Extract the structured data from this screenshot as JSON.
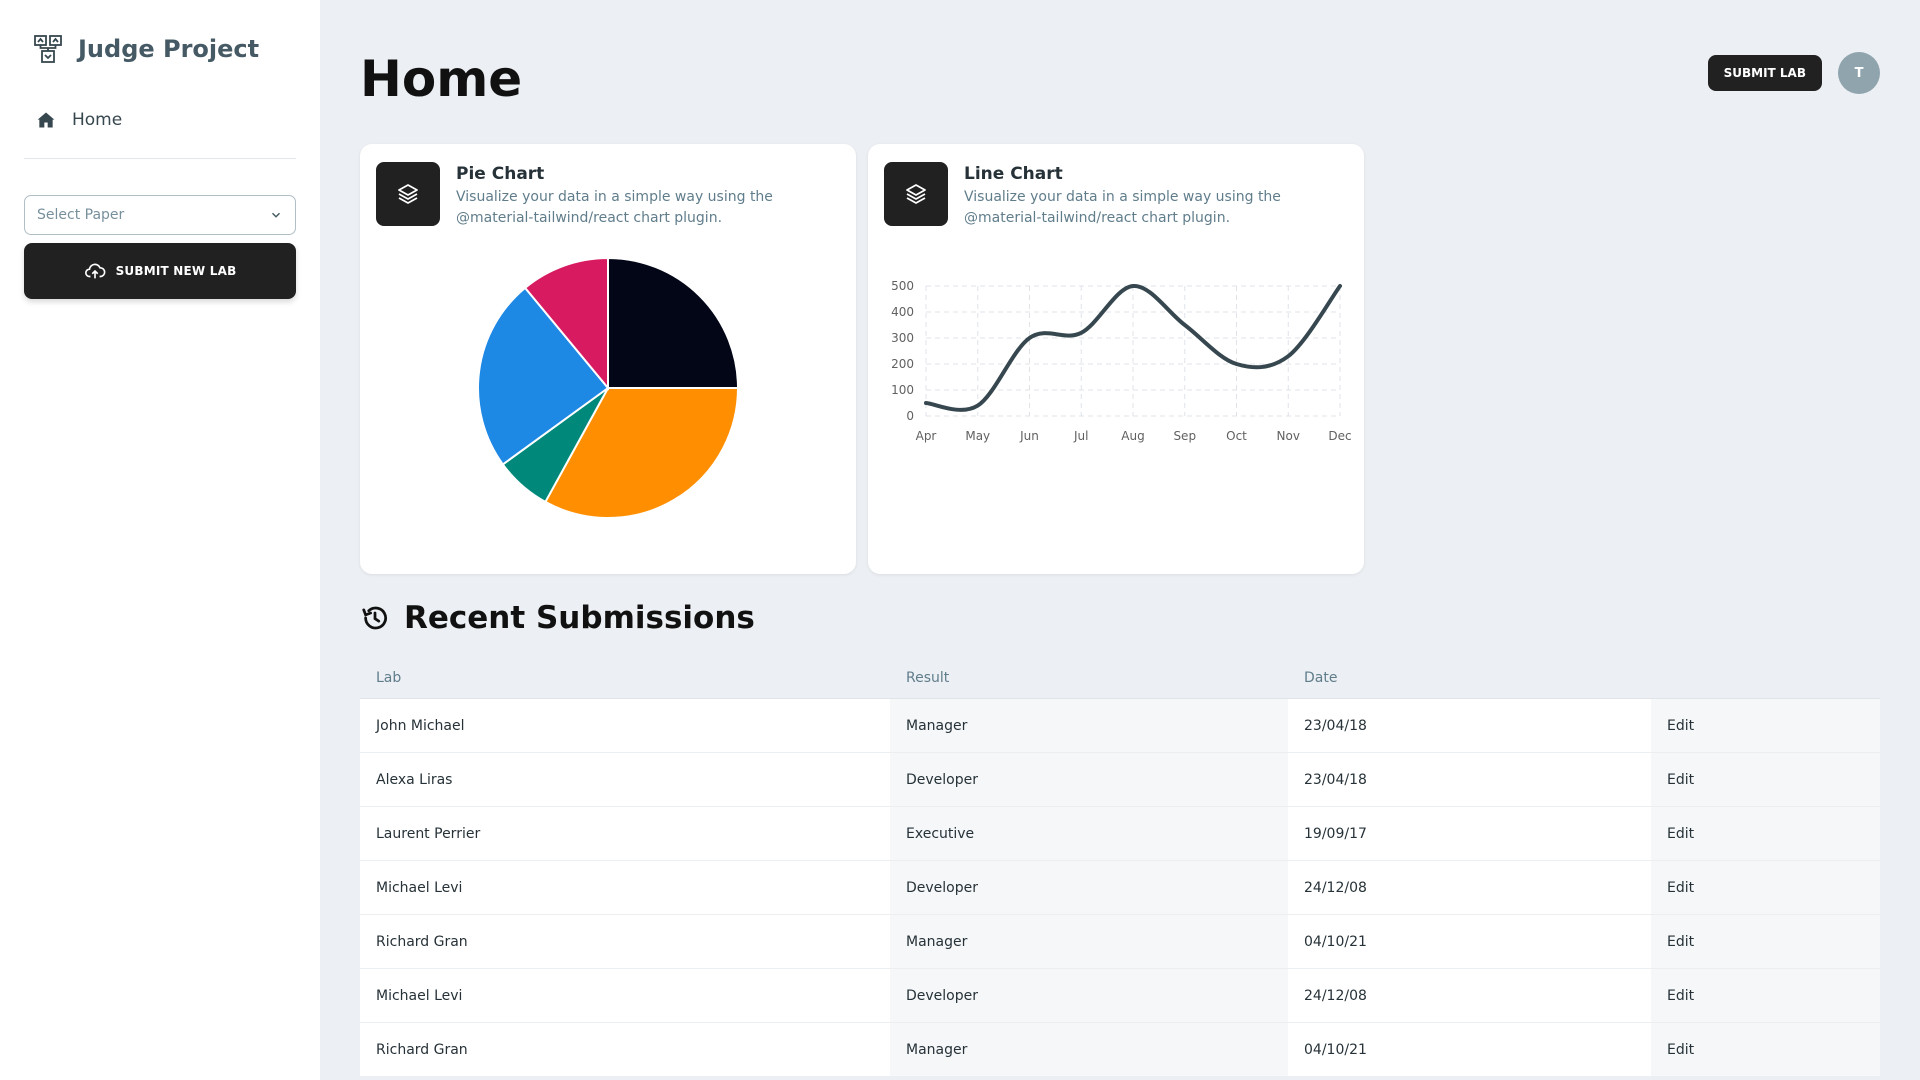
{
  "sidebar": {
    "brand_title": "Judge Project",
    "nav": [
      {
        "label": "Home",
        "icon": "home-icon"
      }
    ],
    "select_placeholder": "Select Paper",
    "submit_new_label": "SUBMIT NEW LAB"
  },
  "header": {
    "title": "Home",
    "submit_lab_label": "SUBMIT LAB",
    "avatar_initial": "T"
  },
  "cards": {
    "pie": {
      "title": "Pie Chart",
      "description": "Visualize your data in a simple way using the @material-tailwind/react chart plugin.",
      "icon": "layers-icon"
    },
    "line": {
      "title": "Line Chart",
      "description": "Visualize your data in a simple way using the @material-tailwind/react chart plugin.",
      "icon": "layers-icon"
    }
  },
  "chart_data": [
    {
      "type": "pie",
      "title": "",
      "values": [
        25,
        33,
        7,
        24,
        11
      ],
      "colors": [
        "#020617",
        "#ff8f00",
        "#00897b",
        "#1e88e5",
        "#d81b60"
      ]
    },
    {
      "type": "line",
      "title": "",
      "categories": [
        "Apr",
        "May",
        "Jun",
        "Jul",
        "Aug",
        "Sep",
        "Oct",
        "Nov",
        "Dec"
      ],
      "values": [
        50,
        40,
        300,
        320,
        500,
        350,
        200,
        230,
        500
      ],
      "y_ticks": [
        "0",
        "100",
        "200",
        "300",
        "400",
        "500"
      ],
      "ylim": [
        0,
        500
      ],
      "grid": true,
      "line_color": "#37474f"
    }
  ],
  "recent": {
    "title": "Recent Submissions",
    "icon": "history-icon",
    "columns": [
      "Lab",
      "Result",
      "Date",
      ""
    ],
    "rows": [
      {
        "lab": "John Michael",
        "result": "Manager",
        "date": "23/04/18",
        "action": "Edit"
      },
      {
        "lab": "Alexa Liras",
        "result": "Developer",
        "date": "23/04/18",
        "action": "Edit"
      },
      {
        "lab": "Laurent Perrier",
        "result": "Executive",
        "date": "19/09/17",
        "action": "Edit"
      },
      {
        "lab": "Michael Levi",
        "result": "Developer",
        "date": "24/12/08",
        "action": "Edit"
      },
      {
        "lab": "Richard Gran",
        "result": "Manager",
        "date": "04/10/21",
        "action": "Edit"
      },
      {
        "lab": "Michael Levi",
        "result": "Developer",
        "date": "24/12/08",
        "action": "Edit"
      },
      {
        "lab": "Richard Gran",
        "result": "Manager",
        "date": "04/10/21",
        "action": "Edit"
      }
    ]
  }
}
